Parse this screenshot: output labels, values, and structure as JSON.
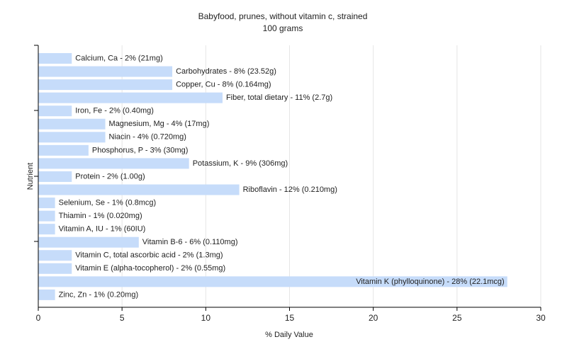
{
  "chart_data": {
    "type": "bar",
    "orientation": "horizontal",
    "title": "Babyfood, prunes, without vitamin c, strained",
    "subtitle": "100 grams",
    "xlabel": "% Daily Value",
    "ylabel": "Nutrient",
    "xlim": [
      0,
      30
    ],
    "xticks": [
      0,
      5,
      10,
      15,
      20,
      25,
      30
    ],
    "grid": true,
    "bar_color": "#c6dcfa",
    "categories": [
      "Calcium, Ca",
      "Carbohydrates",
      "Copper, Cu",
      "Fiber, total dietary",
      "Iron, Fe",
      "Magnesium, Mg",
      "Niacin",
      "Phosphorus, P",
      "Potassium, K",
      "Protein",
      "Riboflavin",
      "Selenium, Se",
      "Thiamin",
      "Vitamin A, IU",
      "Vitamin B-6",
      "Vitamin C, total ascorbic acid",
      "Vitamin E (alpha-tocopherol)",
      "Vitamin K (phylloquinone)",
      "Zinc, Zn"
    ],
    "values": [
      2,
      8,
      8,
      11,
      2,
      4,
      4,
      3,
      9,
      2,
      12,
      1,
      1,
      1,
      6,
      2,
      2,
      28,
      1
    ],
    "labels": [
      "Calcium, Ca - 2% (21mg)",
      "Carbohydrates - 8% (23.52g)",
      "Copper, Cu - 8% (0.164mg)",
      "Fiber, total dietary - 11% (2.7g)",
      "Iron, Fe - 2% (0.40mg)",
      "Magnesium, Mg - 4% (17mg)",
      "Niacin - 4% (0.720mg)",
      "Phosphorus, P - 3% (30mg)",
      "Potassium, K - 9% (306mg)",
      "Protein - 2% (1.00g)",
      "Riboflavin - 12% (0.210mg)",
      "Selenium, Se - 1% (0.8mcg)",
      "Thiamin - 1% (0.020mg)",
      "Vitamin A, IU - 1% (60IU)",
      "Vitamin B-6 - 6% (0.110mg)",
      "Vitamin C, total ascorbic acid - 2% (1.3mg)",
      "Vitamin E (alpha-tocopherol) - 2% (0.55mg)",
      "Vitamin K (phylloquinone) - 28% (22.1mcg)",
      "Zinc, Zn - 1% (0.20mg)"
    ]
  }
}
